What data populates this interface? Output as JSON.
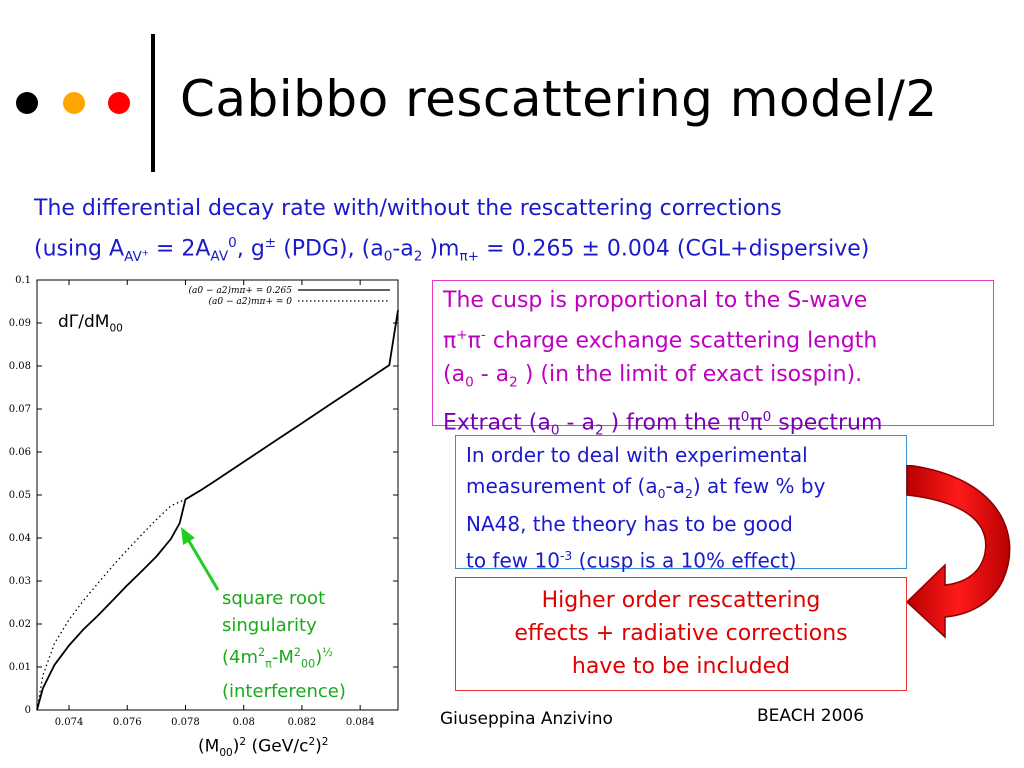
{
  "title": "Cabibbo rescattering model/2",
  "header_dots": [
    "#000000",
    "#ffa500",
    "#ff0000"
  ],
  "intro": {
    "line1": "The differential decay rate with/without the rescattering corrections",
    "line2_a": "(using A",
    "line2_sub1": "AV",
    "line2_sup1": "+",
    "line2_b": " = 2A",
    "line2_sub2": "AV",
    "line2_sup2": "0",
    "line2_c": ", g",
    "line2_sup3": "±",
    "line2_d": " (PDG), (a",
    "line2_sub3": "0",
    "line2_e": "-a",
    "line2_sub4": "2",
    "line2_f": " )m",
    "line2_sub5": "π+",
    "line2_g": " = 0.265 ± 0.004 (CGL+dispersive)"
  },
  "box1": {
    "l1": "The cusp is proportional to the S-wave",
    "l2_pi": "π",
    "l2_sup1": "+",
    "l2_pi2": "π",
    "l2_sup2": "-",
    "l2_rest": " charge exchange scattering length",
    "l3_a": "(a",
    "l3_sub1": "0",
    "l3_b": " - a",
    "l3_sub2": "2",
    "l3_c": " ) (in the limit of exact isospin).",
    "l4_a": "Extract (a",
    "l4_sub1": "0",
    "l4_b": " - a",
    "l4_sub2": "2",
    "l4_c": " ) from the ",
    "l4_pi": "π",
    "l4_sup1": "0",
    "l4_pi2": "π",
    "l4_sup2": "0",
    "l4_d": " spectrum"
  },
  "box2": {
    "l1": "In order to deal with experimental",
    "l2_a": "measurement of (a",
    "l2_sub1": "0",
    "l2_b": "-a",
    "l2_sub2": "2",
    "l2_c": ") at few % by",
    "l3": "NA48, the theory has to be good",
    "l4_a": "to few 10",
    "l4_sup": "-3",
    "l4_b": " (cusp is a 10% effect)"
  },
  "box3": {
    "l1": "Higher order rescattering",
    "l2": "effects + radiative corrections",
    "l3": "have to be included"
  },
  "footer": {
    "author": "Giuseppina Anzivino",
    "conference": "BEACH 2006"
  },
  "annotation": {
    "l1": "square root",
    "l2": "singularity",
    "l3_a": "(4m",
    "l3_sup1": "2",
    "l3_sub1": "π",
    "l3_b": "-M",
    "l3_sup2": "2",
    "l3_sub2": "00",
    "l3_c": ")",
    "l3_exp": "½",
    "l4": "(interference)",
    "arrow_color": "#22cc22"
  },
  "chart_data": {
    "type": "line",
    "ylabel_a": "dΓ/dM",
    "ylabel_sub": "00",
    "xlabel_a": "(M",
    "xlabel_sub": "00",
    "xlabel_b": ")",
    "xlabel_sup1": "2",
    "xlabel_c": " (GeV/c",
    "xlabel_sup2": "2",
    "xlabel_d": ")",
    "xlabel_sup3": "2",
    "xlim": [
      0.0729,
      0.0853
    ],
    "ylim": [
      0,
      0.1
    ],
    "x_ticks": [
      "0.074",
      "0.076",
      "0.078",
      "0.08",
      "0.082",
      "0.084"
    ],
    "x_tick_values": [
      0.074,
      0.076,
      0.078,
      0.08,
      0.082,
      0.084
    ],
    "y_ticks": [
      "0",
      "0.01",
      "0.02",
      "0.03",
      "0.04",
      "0.05",
      "0.06",
      "0.07",
      "0.08",
      "0.09",
      "0.1"
    ],
    "y_tick_values": [
      0,
      0.01,
      0.02,
      0.03,
      0.04,
      0.05,
      0.06,
      0.07,
      0.08,
      0.09,
      0.1
    ],
    "legend_placement": "top-right",
    "series": [
      {
        "name": "(a0 − a2)mπ+ = 0.265",
        "style": "solid",
        "x": [
          0.0729,
          0.0731,
          0.0735,
          0.074,
          0.0745,
          0.075,
          0.0755,
          0.076,
          0.0765,
          0.077,
          0.0775,
          0.0778,
          0.078,
          0.0785,
          0.079,
          0.08,
          0.081,
          0.082,
          0.083,
          0.084,
          0.085,
          0.0853
        ],
        "y": [
          0.0,
          0.005,
          0.0105,
          0.015,
          0.0188,
          0.022,
          0.0255,
          0.029,
          0.0323,
          0.0357,
          0.0398,
          0.0435,
          0.049,
          0.051,
          0.0532,
          0.0577,
          0.0622,
          0.0667,
          0.0712,
          0.0757,
          0.0802,
          0.093
        ]
      },
      {
        "name": "(a0 − a2)mπ+ = 0",
        "style": "dotted",
        "x": [
          0.0729,
          0.0731,
          0.0735,
          0.074,
          0.0745,
          0.075,
          0.0755,
          0.076,
          0.0765,
          0.077,
          0.0775,
          0.078
        ],
        "y": [
          0.0,
          0.008,
          0.0155,
          0.021,
          0.0255,
          0.0295,
          0.0335,
          0.0372,
          0.0408,
          0.0443,
          0.0475,
          0.049
        ]
      }
    ]
  }
}
